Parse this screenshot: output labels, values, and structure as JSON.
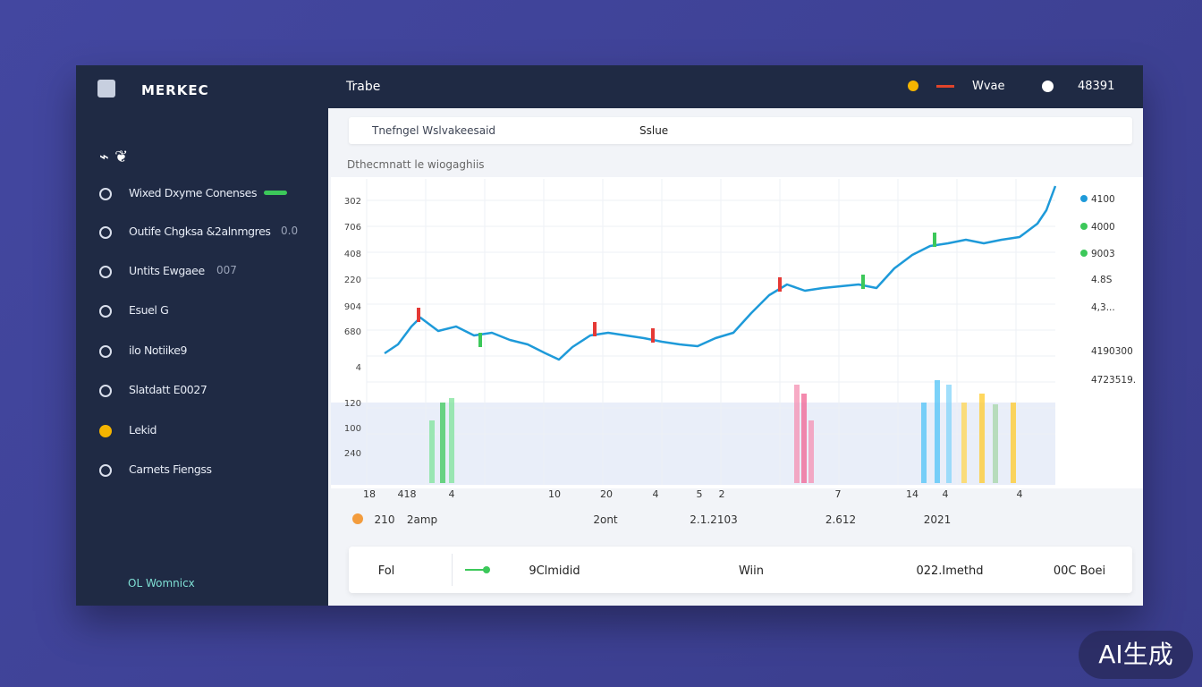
{
  "sidebar": {
    "logo": "MERKEC",
    "menu": [
      {
        "label": "Wixed Dxyme Conenses"
      },
      {
        "label": "Outife Chgksa &2alnmgres",
        "value": "0.0"
      },
      {
        "label": "Untits Ewgaee",
        "value": "007"
      },
      {
        "label": "Esuel G"
      },
      {
        "label": "ilo Notiike9"
      },
      {
        "label": "Slatdatt E0027"
      },
      {
        "label": "Lekid"
      },
      {
        "label": "Carnets Fiengss"
      }
    ],
    "footer": "OL Womnicx"
  },
  "topbar": {
    "title": "Trabe",
    "user": "Wvae",
    "balance": "48391"
  },
  "panel": {
    "tab": "Tnefngel Wslvakeesaid",
    "sort": "Sslue",
    "subtitle": "Dthecmnatt le wiogaghiis",
    "y_labels": [
      "302",
      "706",
      "408",
      "220",
      "904",
      "680",
      "4",
      "120",
      "100",
      "240"
    ],
    "right_labels": [
      "4100",
      "4000",
      "9003",
      "4.8S",
      "4,3...",
      "4190300",
      "4723519."
    ],
    "x_labels": [
      "18",
      "418",
      "4",
      "10",
      "20",
      "4",
      "5",
      "2",
      "7",
      "14",
      "4",
      "4"
    ],
    "date_labels": [
      "210",
      "2amp",
      "2ont",
      "2.1.2103",
      "2.612",
      "2021"
    ]
  },
  "summary": {
    "items": [
      "Fol",
      "9Clmidid",
      "Wiin",
      "022.Imethd",
      "00C Boei"
    ]
  },
  "watermark": "AI生成"
}
